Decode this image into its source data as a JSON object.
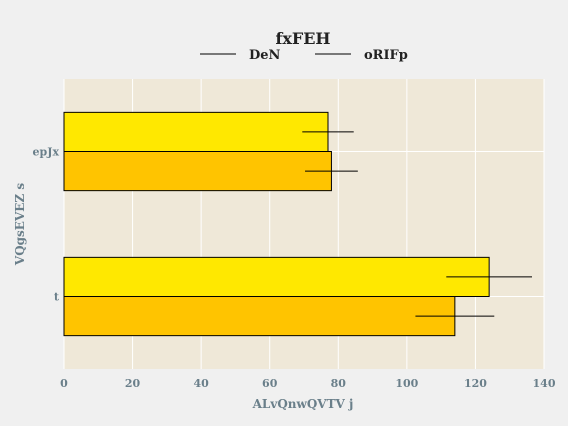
{
  "chart_data": {
    "type": "bar",
    "orientation": "horizontal",
    "title": "fxFEH",
    "xlabel": "ALvQnwQVTV j",
    "ylabel": "VQgsEVEZ s",
    "categories": [
      "t",
      "epJx"
    ],
    "xlim": [
      0,
      140
    ],
    "xticks": [
      0,
      20,
      40,
      60,
      80,
      100,
      120,
      140
    ],
    "grid": true,
    "legend_position": "top",
    "series": [
      {
        "name": "DeN",
        "color": "#ffe800",
        "values": [
          124,
          77
        ],
        "error": [
          12.5,
          7.5
        ]
      },
      {
        "name": "oRIFp",
        "color": "#ffc400",
        "values": [
          114,
          78
        ],
        "error": [
          11.5,
          7.7
        ]
      }
    ],
    "plot_background": "#efe8d8",
    "edge_color": "#000000"
  }
}
